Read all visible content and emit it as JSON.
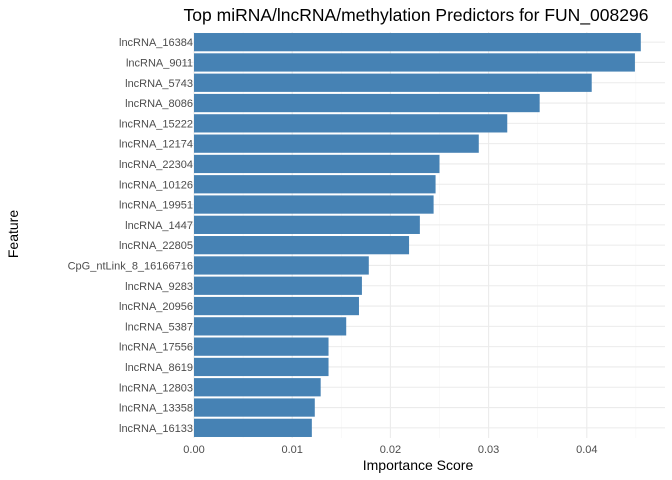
{
  "chart_data": {
    "type": "bar",
    "orientation": "horizontal",
    "title": "Top miRNA/lncRNA/methylation Predictors for FUN_008296",
    "xlabel": "Importance Score",
    "ylabel": "Feature",
    "xlim": [
      0,
      0.0463
    ],
    "x_ticks": [
      0,
      0.01,
      0.02,
      0.03,
      0.04
    ],
    "x_tick_labels": [
      "0.00",
      "0.01",
      "0.02",
      "0.03",
      "0.04"
    ],
    "grid": true,
    "legend": "none",
    "bar_color": "#4682B4",
    "categories": [
      "lncRNA_16384",
      "lncRNA_9011",
      "lncRNA_5743",
      "lncRNA_8086",
      "lncRNA_15222",
      "lncRNA_12174",
      "lncRNA_22304",
      "lncRNA_10126",
      "lncRNA_19951",
      "lncRNA_1447",
      "lncRNA_22805",
      "CpG_ntLink_8_16166716",
      "lncRNA_9283",
      "lncRNA_20956",
      "lncRNA_5387",
      "lncRNA_17556",
      "lncRNA_8619",
      "lncRNA_12803",
      "lncRNA_13358",
      "lncRNA_16133"
    ],
    "values": [
      0.0455,
      0.0449,
      0.0405,
      0.0352,
      0.0319,
      0.029,
      0.025,
      0.0246,
      0.0244,
      0.023,
      0.0219,
      0.0178,
      0.0171,
      0.0168,
      0.0155,
      0.0137,
      0.0137,
      0.0129,
      0.0123,
      0.012
    ]
  }
}
